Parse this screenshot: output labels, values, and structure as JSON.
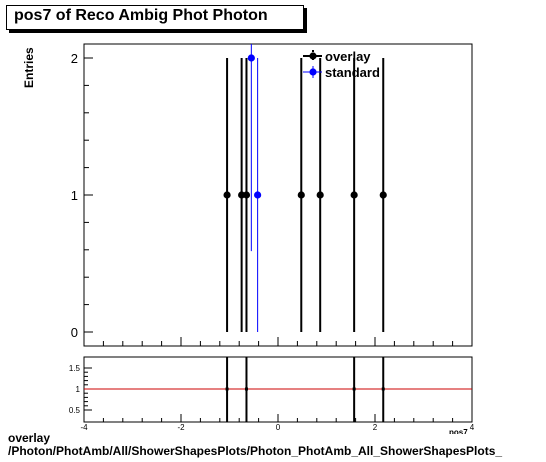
{
  "chart_data": [
    {
      "type": "scatter",
      "title": "pos7 of Reco Ambig Phot Photon",
      "ylabel": "Entries",
      "xlim": [
        -4,
        4
      ],
      "ylim": [
        0,
        2
      ],
      "y_ticks": [
        "0",
        "1",
        "2"
      ],
      "x_ticks": [
        "-4",
        "-2",
        "0",
        "2",
        "4"
      ],
      "legend_position": "top-right",
      "series": [
        {
          "name": "overlay",
          "color": "#000000",
          "points": [
            {
              "x": -1.05,
              "y": 1,
              "err": 1
            },
            {
              "x": -0.75,
              "y": 1,
              "err": 1
            },
            {
              "x": -0.65,
              "y": 1,
              "err": 1
            },
            {
              "x": 0.48,
              "y": 1,
              "err": 1
            },
            {
              "x": 0.87,
              "y": 1,
              "err": 1
            },
            {
              "x": 1.57,
              "y": 1,
              "err": 1
            },
            {
              "x": 2.17,
              "y": 1,
              "err": 1
            }
          ]
        },
        {
          "name": "standard",
          "color": "#0000ff",
          "points": [
            {
              "x": -0.55,
              "y": 2,
              "err": 1.41
            },
            {
              "x": -0.42,
              "y": 1,
              "err": 1
            }
          ]
        }
      ]
    },
    {
      "type": "scatter",
      "title": "",
      "xlim": [
        -4,
        4
      ],
      "ylim": [
        0.3,
        1.7
      ],
      "y_ticks": [
        "0.5",
        "1",
        "1.5"
      ],
      "x_ticks": [
        "-4",
        "-2",
        "0",
        "2",
        "4"
      ],
      "reference_line": {
        "y": 1,
        "color": "#cc0000"
      },
      "ratio_bars_x": [
        -1.05,
        -0.65,
        1.57,
        2.17
      ]
    }
  ],
  "footer": {
    "line1": "overlay",
    "line2": "/Photon/PhotAmb/All/ShowerShapesPlots/Photon_PhotAmb_All_ShowerShapesPlots_",
    "xlabel_fragment": "pos7"
  }
}
